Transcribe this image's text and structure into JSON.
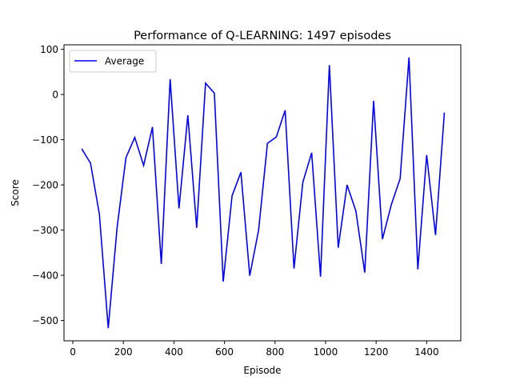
{
  "chart_data": {
    "type": "line",
    "title": "Performance of Q-LEARNING: 1497 episodes",
    "xlabel": "Episode",
    "ylabel": "Score",
    "xlim": [
      -35,
      1535
    ],
    "ylim": [
      -545,
      110
    ],
    "xticks": [
      0,
      200,
      400,
      600,
      800,
      1000,
      1200,
      1400
    ],
    "yticks": [
      -500,
      -400,
      -300,
      -200,
      -100,
      0,
      100
    ],
    "grid": false,
    "legend_position": "top-left",
    "series": [
      {
        "name": "Average",
        "color": "#0000ff",
        "x": [
          35,
          70,
          105,
          140,
          175,
          210,
          245,
          280,
          315,
          350,
          385,
          420,
          455,
          490,
          525,
          560,
          595,
          630,
          665,
          700,
          735,
          770,
          805,
          840,
          875,
          910,
          945,
          980,
          1015,
          1050,
          1085,
          1120,
          1155,
          1190,
          1225,
          1260,
          1295,
          1330,
          1365,
          1400,
          1435,
          1470
        ],
        "y": [
          -120,
          -152,
          -265,
          -517,
          -295,
          -140,
          -95,
          -157,
          -72,
          -375,
          34,
          -252,
          -46,
          -295,
          25,
          3,
          -414,
          -224,
          -172,
          -401,
          -300,
          -108,
          -94,
          -35,
          -385,
          -194,
          -129,
          -403,
          65,
          -339,
          -200,
          -258,
          -394,
          -14,
          -320,
          -244,
          -186,
          82,
          -387,
          -134,
          -311,
          -40
        ]
      }
    ]
  }
}
